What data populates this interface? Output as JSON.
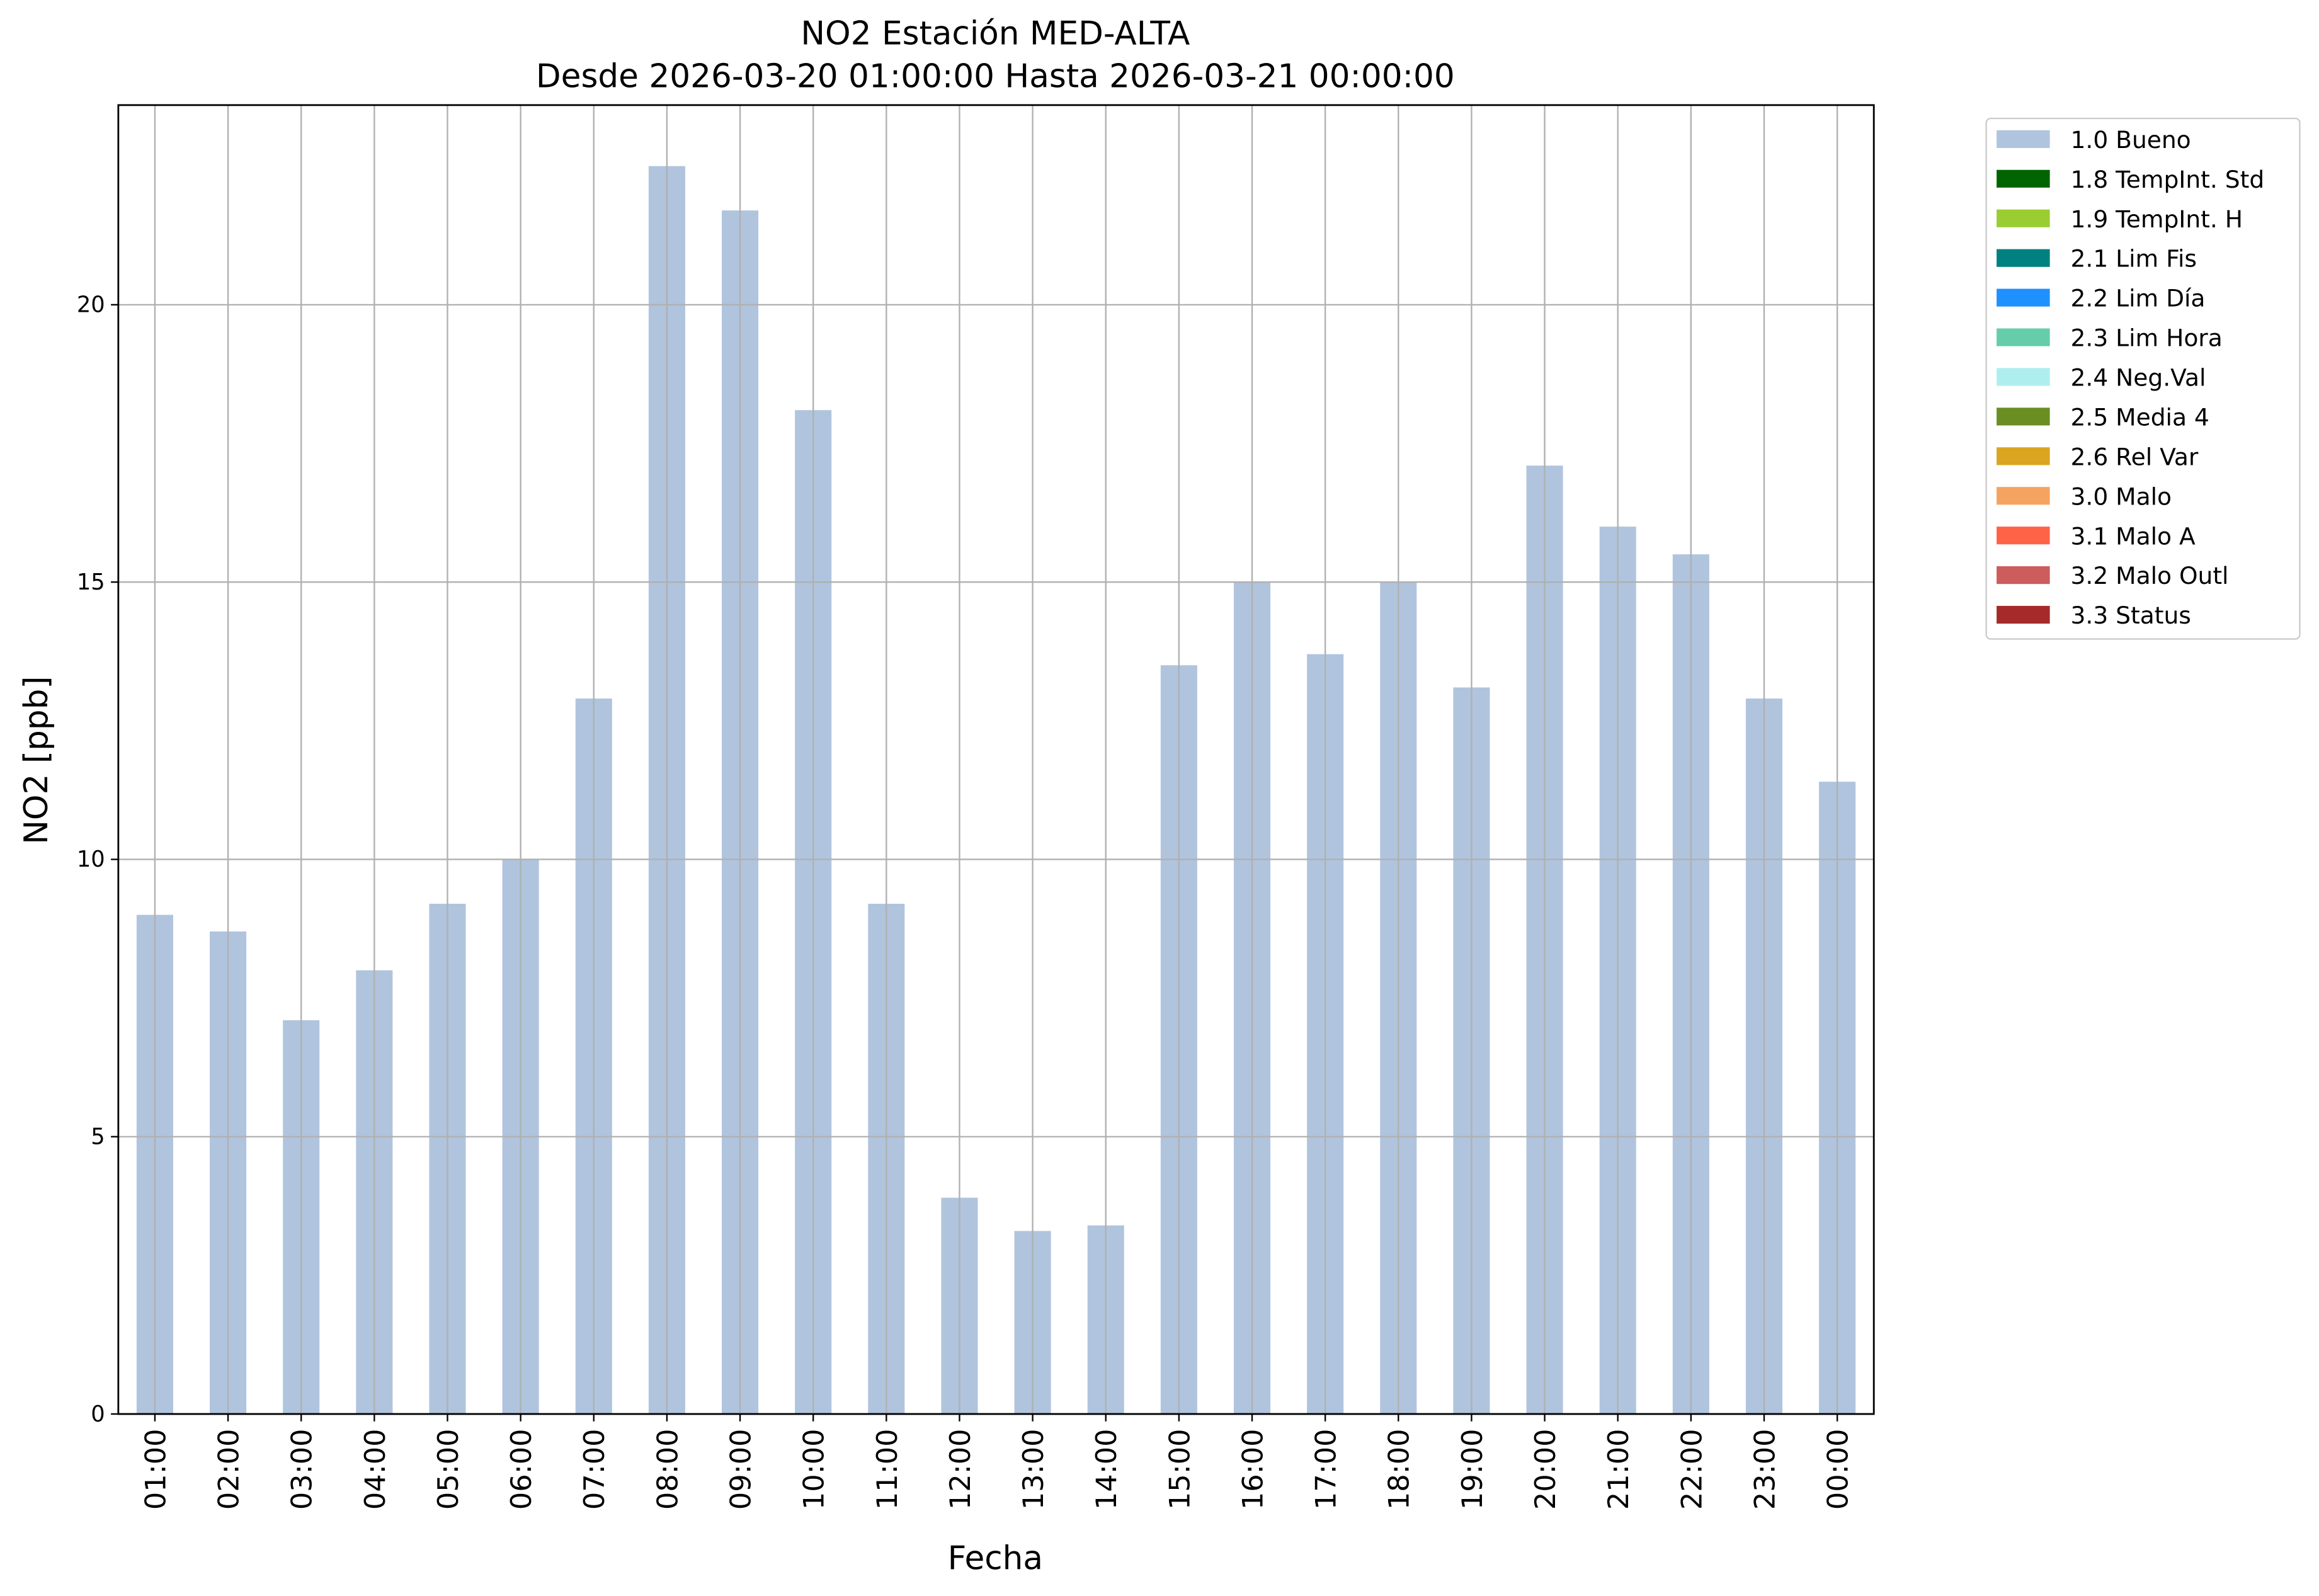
{
  "chart_data": {
    "type": "bar",
    "title": "NO2 Estación MED-ALTA",
    "subtitle": "Desde 2026-03-20 01:00:00 Hasta 2026-03-21 00:00:00",
    "x_label": "Fecha",
    "y_label": "NO2 [ppb]",
    "categories": [
      "01:00",
      "02:00",
      "03:00",
      "04:00",
      "05:00",
      "06:00",
      "07:00",
      "08:00",
      "09:00",
      "10:00",
      "11:00",
      "12:00",
      "13:00",
      "14:00",
      "15:00",
      "16:00",
      "17:00",
      "18:00",
      "19:00",
      "20:00",
      "21:00",
      "22:00",
      "23:00",
      "00:00"
    ],
    "series": [
      {
        "name": "1.0 Bueno",
        "color": "#b0c4de",
        "values": [
          9.0,
          8.7,
          7.1,
          8.0,
          9.2,
          10.0,
          12.9,
          22.5,
          21.7,
          18.1,
          9.2,
          3.9,
          3.3,
          3.4,
          13.5,
          15.0,
          13.7,
          15.0,
          13.1,
          17.1,
          16.0,
          15.5,
          12.9,
          11.4
        ]
      }
    ],
    "legend_only": [
      {
        "name": "1.8 TempInt. Std",
        "color": "#006400"
      },
      {
        "name": "1.9 TempInt. H",
        "color": "#9acd32"
      },
      {
        "name": "2.1 Lim Fis",
        "color": "#008080"
      },
      {
        "name": "2.2 Lim Día",
        "color": "#1e90ff"
      },
      {
        "name": "2.3 Lim Hora",
        "color": "#66cdaa"
      },
      {
        "name": "2.4 Neg.Val",
        "color": "#afeeee"
      },
      {
        "name": "2.5 Media 4",
        "color": "#6b8e23"
      },
      {
        "name": "2.6 Rel Var",
        "color": "#daa520"
      },
      {
        "name": "3.0 Malo",
        "color": "#f4a460"
      },
      {
        "name": "3.1 Malo A",
        "color": "#ff6347"
      },
      {
        "name": "3.2 Malo Outl",
        "color": "#cd5c5c"
      },
      {
        "name": "3.3 Status",
        "color": "#a52a2a"
      }
    ],
    "ylim": [
      0,
      23.6
    ],
    "yticks": [
      0,
      5,
      10,
      15,
      20
    ],
    "grid": true,
    "legend_position": "outside-upper-right"
  }
}
